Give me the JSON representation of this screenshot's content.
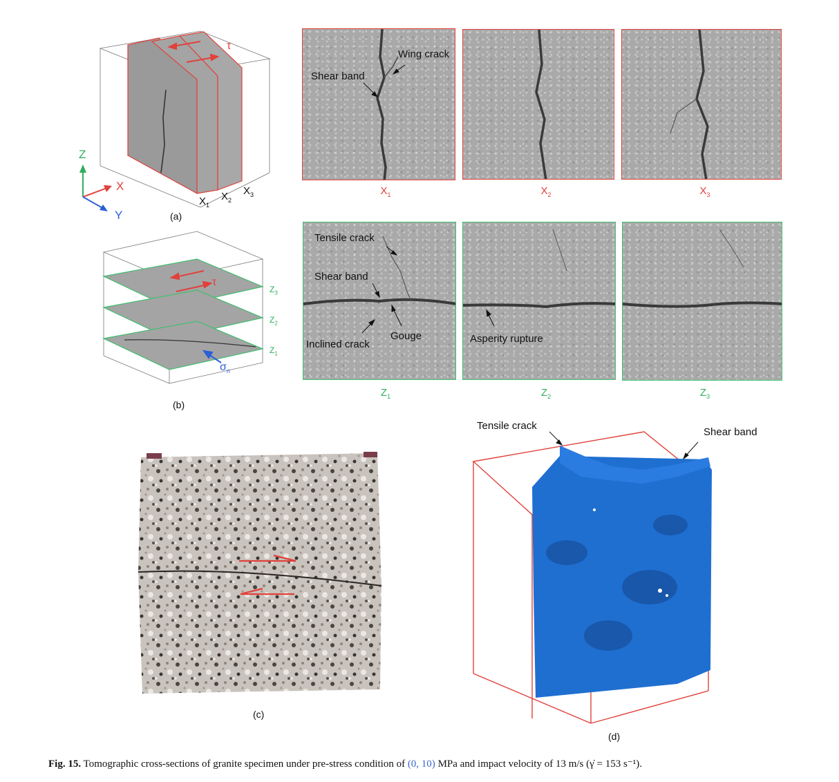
{
  "panels": {
    "a": {
      "tag": "(a)",
      "axes": {
        "z": "Z",
        "x": "X",
        "y": "Y"
      },
      "tau": "τ",
      "planes": [
        {
          "base": "X",
          "sub": "1"
        },
        {
          "base": "X",
          "sub": "2"
        },
        {
          "base": "X",
          "sub": "3"
        }
      ]
    },
    "b": {
      "tag": "(b)",
      "tau": "τ",
      "sigma": {
        "base": "σ",
        "sub": "n"
      },
      "planes": [
        {
          "base": "Z",
          "sub": "3"
        },
        {
          "base": "Z",
          "sub": "2"
        },
        {
          "base": "Z",
          "sub": "1"
        }
      ]
    },
    "x_slices": {
      "slices": [
        {
          "base": "X",
          "sub": "1"
        },
        {
          "base": "X",
          "sub": "2"
        },
        {
          "base": "X",
          "sub": "3"
        }
      ],
      "annotations": {
        "wing_crack": "Wing crack",
        "shear_band": "Shear band"
      }
    },
    "z_slices": {
      "slices": [
        {
          "base": "Z",
          "sub": "1"
        },
        {
          "base": "Z",
          "sub": "2"
        },
        {
          "base": "Z",
          "sub": "3"
        }
      ],
      "annotations": {
        "tensile_crack": "Tensile crack",
        "shear_band": "Shear band",
        "inclined_crack": "Inclined crack",
        "gouge": "Gouge",
        "asperity_rupture": "Asperity rupture"
      }
    },
    "c": {
      "tag": "(c)"
    },
    "d": {
      "tag": "(d)",
      "annotations": {
        "tensile_crack": "Tensile crack",
        "shear_band": "Shear band"
      }
    }
  },
  "caption": {
    "fig_label": "Fig. 15.",
    "text_before": "Tomographic cross-sections of granite specimen under pre-stress condition of",
    "highlight": "(0, 10)",
    "text_after": "MPa and impact velocity of 13 m/s (γ̇ = 153 s⁻¹)."
  },
  "colors": {
    "x_frame": "#e0413a",
    "z_frame": "#3fbf6f",
    "axis_z": "#2fae5e",
    "axis_x": "#e0413a",
    "axis_y": "#2a5fd6",
    "fracture_surface": "#1f6fd1"
  }
}
